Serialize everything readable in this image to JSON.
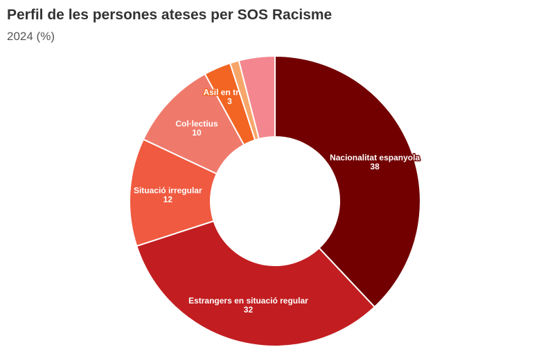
{
  "header": {
    "title": "Perfil de les persones ateses per SOS Racisme",
    "subtitle": "2024 (%)"
  },
  "chart_data": {
    "type": "pie",
    "donut": true,
    "title": "Perfil de les persones ateses per SOS Racisme",
    "subtitle": "2024 (%)",
    "slices": [
      {
        "label": "Nacionalitat espanyola",
        "value": 38,
        "color": "#730000"
      },
      {
        "label": "Estrangers en situació regular",
        "value": 32,
        "color": "#c21e21"
      },
      {
        "label": "Situació irregular",
        "value": 12,
        "color": "#f05a40"
      },
      {
        "label": "Col·lectius",
        "value": 10,
        "color": "#ef7a6c"
      },
      {
        "label": "Asil en tràmit",
        "value": 3,
        "color": "#f26522"
      },
      {
        "label": "",
        "value": 1,
        "color": "#f7a66a"
      },
      {
        "label": "",
        "value": 4,
        "color": "#f4868f"
      }
    ]
  }
}
